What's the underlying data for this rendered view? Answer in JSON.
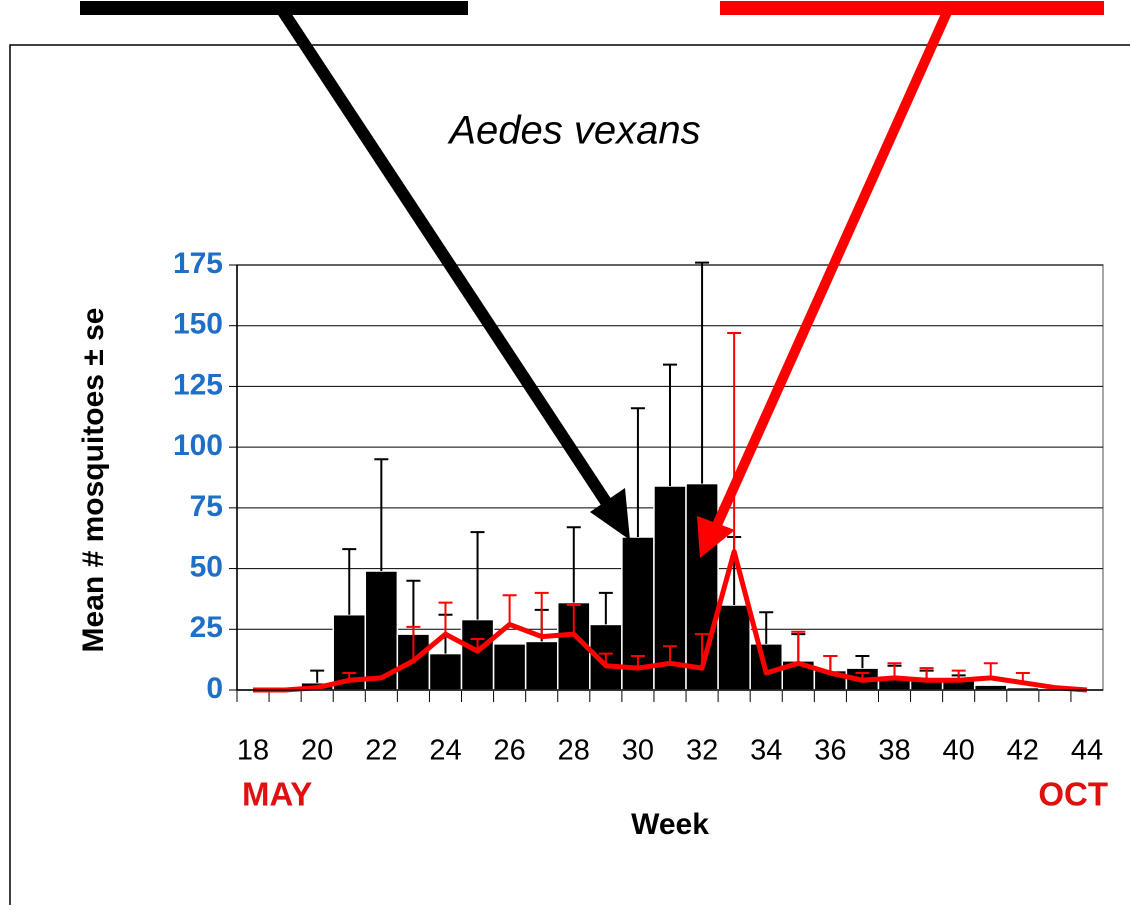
{
  "chart_data": {
    "type": "bar",
    "title": "Aedes vexans",
    "y_label": "Mean # mosquitoes ± se",
    "x_label": "Week",
    "x_start_label": "MAY",
    "x_end_label": "OCT",
    "x": [
      18,
      19,
      20,
      21,
      22,
      23,
      24,
      25,
      26,
      27,
      28,
      29,
      30,
      31,
      32,
      33,
      34,
      35,
      36,
      37,
      38,
      39,
      40,
      41,
      42,
      43,
      44
    ],
    "xlim": [
      17.5,
      44.5
    ],
    "xticks": [
      18,
      20,
      22,
      24,
      26,
      28,
      30,
      32,
      34,
      36,
      38,
      40,
      42,
      44
    ],
    "ylim": [
      0,
      175
    ],
    "yticks": [
      0,
      25,
      50,
      75,
      100,
      125,
      150,
      175
    ],
    "grid": true,
    "series": [
      {
        "type": "bar",
        "color": "#000000",
        "values": [
          0,
          0,
          3,
          31,
          49,
          23,
          15,
          29,
          19,
          20,
          36,
          27,
          63,
          84,
          85,
          35,
          19,
          12,
          8,
          9,
          5,
          4,
          4,
          2,
          1,
          0,
          0
        ],
        "errors": [
          null,
          null,
          5,
          27,
          46,
          22,
          16,
          36,
          null,
          13,
          31,
          13,
          53,
          50,
          91,
          28,
          13,
          11,
          6,
          5,
          5,
          4,
          2,
          null,
          null,
          null,
          null
        ]
      },
      {
        "type": "line",
        "color": "#ff0000",
        "values": [
          0,
          0,
          1,
          4,
          5,
          12,
          23,
          16,
          27,
          22,
          23,
          10,
          9,
          11,
          9,
          57,
          7,
          11,
          7,
          4,
          5,
          4,
          4,
          5,
          3,
          1,
          0
        ],
        "errors": [
          null,
          null,
          null,
          3,
          null,
          14,
          13,
          5,
          12,
          18,
          12,
          5,
          5,
          7,
          14,
          90,
          null,
          13,
          7,
          3,
          6,
          5,
          4,
          6,
          4,
          null,
          null
        ]
      }
    ]
  }
}
